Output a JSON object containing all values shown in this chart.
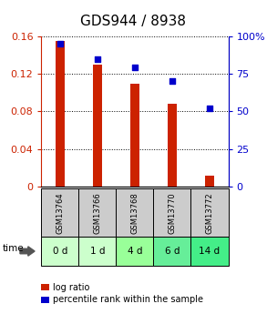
{
  "title": "GDS944 / 8938",
  "categories": [
    "GSM13764",
    "GSM13766",
    "GSM13768",
    "GSM13770",
    "GSM13772"
  ],
  "time_labels": [
    "0 d",
    "1 d",
    "4 d",
    "6 d",
    "14 d"
  ],
  "log_ratios": [
    0.155,
    0.13,
    0.109,
    0.088,
    0.012
  ],
  "percentile_ranks": [
    95,
    85,
    79,
    70,
    52
  ],
  "bar_color": "#cc2200",
  "dot_color": "#0000cc",
  "ylim_left": [
    0,
    0.16
  ],
  "ylim_right": [
    0,
    100
  ],
  "yticks_left": [
    0,
    0.04,
    0.08,
    0.12,
    0.16
  ],
  "ytick_labels_left": [
    "0",
    "0.04",
    "0.08",
    "0.12",
    "0.16"
  ],
  "yticks_right": [
    0,
    25,
    50,
    75,
    100
  ],
  "ytick_labels_right": [
    "0",
    "25",
    "50",
    "75",
    "100%"
  ],
  "title_fontsize": 11,
  "tick_fontsize": 8,
  "gsm_bg_color": "#cccccc",
  "time_bg_colors": [
    "#ccffcc",
    "#ccffcc",
    "#99ff99",
    "#66ee99",
    "#44ee88"
  ],
  "legend_red_label": "log ratio",
  "legend_blue_label": "percentile rank within the sample",
  "bar_width": 0.25
}
